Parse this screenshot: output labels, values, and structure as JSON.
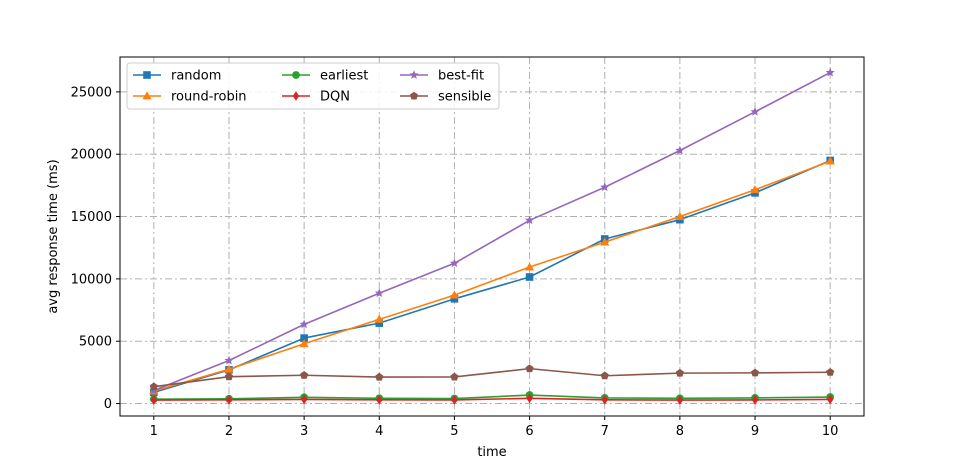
{
  "chart_data": {
    "type": "line",
    "xlabel": "time",
    "ylabel": "avg response time (ms)",
    "x": [
      1,
      2,
      3,
      4,
      5,
      6,
      7,
      8,
      9,
      10
    ],
    "xlim": [
      0.55,
      10.45
    ],
    "ylim": [
      -1000,
      27800
    ],
    "xticks": [
      1,
      2,
      3,
      4,
      5,
      6,
      7,
      8,
      9,
      10
    ],
    "yticks": [
      0,
      5000,
      10000,
      15000,
      20000,
      25000
    ],
    "grid": true,
    "legend_position": "top-left",
    "legend_columns": 3,
    "series": [
      {
        "name": "random",
        "color": "#1f77b4",
        "marker": "square",
        "values": [
          900,
          2700,
          5250,
          6450,
          8400,
          10150,
          13200,
          14750,
          16900,
          19500
        ]
      },
      {
        "name": "round-robin",
        "color": "#ff7f0e",
        "marker": "triangle",
        "values": [
          1000,
          2750,
          4800,
          6750,
          8700,
          10950,
          12950,
          15000,
          17150,
          19450
        ]
      },
      {
        "name": "earliest",
        "color": "#2ca02c",
        "marker": "circle",
        "values": [
          350,
          380,
          500,
          420,
          400,
          680,
          450,
          420,
          450,
          520
        ]
      },
      {
        "name": "DQN",
        "color": "#d62728",
        "marker": "diamond",
        "values": [
          280,
          300,
          330,
          300,
          290,
          420,
          300,
          280,
          290,
          330
        ]
      },
      {
        "name": "best-fit",
        "color": "#9467bd",
        "marker": "star",
        "values": [
          1050,
          3450,
          6350,
          8850,
          11250,
          14700,
          17350,
          20300,
          23400,
          26550
        ]
      },
      {
        "name": "sensible",
        "color": "#8c564b",
        "marker": "pentagon",
        "values": [
          1350,
          2150,
          2270,
          2120,
          2130,
          2800,
          2230,
          2440,
          2460,
          2510
        ]
      }
    ]
  }
}
